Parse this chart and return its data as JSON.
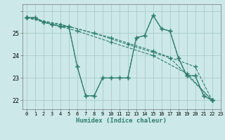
{
  "title": "",
  "xlabel": "Humidex (Indice chaleur)",
  "ylabel": "",
  "bg_color": "#cce8e8",
  "line_color": "#2e7d6e",
  "grid_color": "#aacccc",
  "xlim": [
    -0.5,
    23
  ],
  "ylim": [
    21.6,
    26.3
  ],
  "yticks": [
    22,
    23,
    24,
    25,
    26
  ],
  "yticklabels": [
    "22",
    "23",
    "24",
    "25",
    ""
  ],
  "xticks": [
    0,
    1,
    2,
    3,
    4,
    5,
    6,
    7,
    8,
    9,
    10,
    11,
    12,
    13,
    14,
    15,
    16,
    17,
    18,
    19,
    20,
    21,
    22,
    23
  ],
  "series": [
    [
      [
        0,
        25.7
      ],
      [
        1,
        25.7
      ],
      [
        2,
        25.5
      ],
      [
        3,
        25.4
      ],
      [
        4,
        25.3
      ],
      [
        5,
        25.3
      ],
      [
        6,
        23.5
      ],
      [
        7,
        22.2
      ],
      [
        8,
        22.2
      ],
      [
        9,
        23.0
      ],
      [
        10,
        23.0
      ],
      [
        11,
        23.0
      ],
      [
        12,
        23.0
      ],
      [
        13,
        24.8
      ],
      [
        14,
        24.9
      ],
      [
        15,
        25.8
      ],
      [
        16,
        25.2
      ],
      [
        17,
        25.1
      ],
      [
        18,
        23.9
      ],
      [
        19,
        23.1
      ],
      [
        20,
        23.1
      ],
      [
        21,
        22.2
      ],
      [
        22,
        22.0
      ]
    ],
    [
      [
        0,
        25.7
      ],
      [
        3,
        25.4
      ],
      [
        6,
        25.1
      ],
      [
        10,
        24.6
      ],
      [
        15,
        24.0
      ],
      [
        19,
        23.2
      ],
      [
        22,
        22.0
      ]
    ],
    [
      [
        0,
        25.7
      ],
      [
        4,
        25.4
      ],
      [
        8,
        25.0
      ],
      [
        12,
        24.5
      ],
      [
        17,
        23.9
      ],
      [
        22,
        22.0
      ]
    ],
    [
      [
        0,
        25.7
      ],
      [
        5,
        25.3
      ],
      [
        10,
        24.8
      ],
      [
        15,
        24.2
      ],
      [
        20,
        23.5
      ],
      [
        22,
        22.0
      ]
    ]
  ]
}
